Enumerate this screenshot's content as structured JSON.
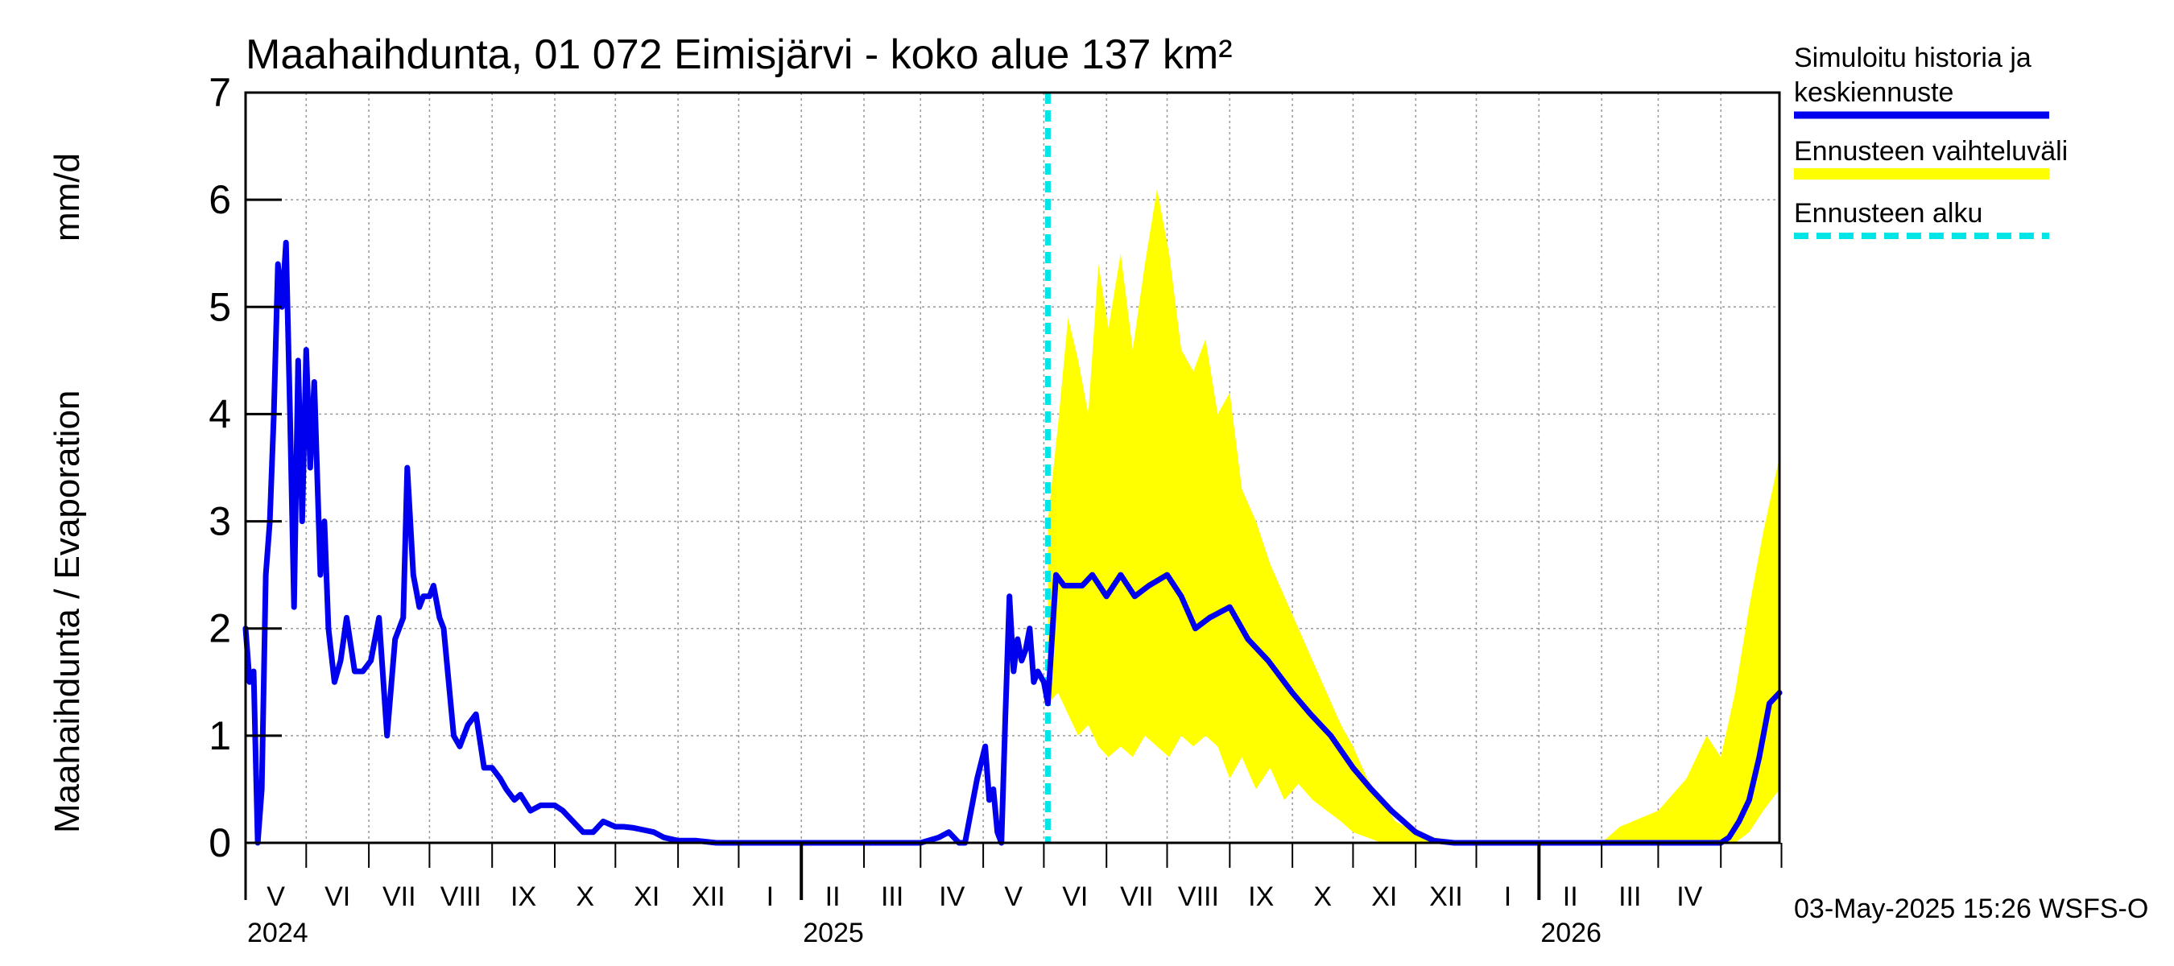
{
  "chart_data": {
    "type": "line",
    "title": "Maahaihdunta, 01 072 Eimisjärvi - koko alue 137 km²",
    "ylabel_left": "Maahaihdunta / Evaporation",
    "ylabel_unit": "mm/d",
    "ylim": [
      0,
      7
    ],
    "y_ticks": [
      "0",
      "1",
      "2",
      "3",
      "4",
      "5",
      "6",
      "7"
    ],
    "x_range": [
      "2024-04-01",
      "2026-04-30"
    ],
    "month_labels": [
      "V",
      "VI",
      "VII",
      "VIII",
      "IX",
      "X",
      "XI",
      "XII",
      "I",
      "II",
      "III",
      "IV",
      "V",
      "VI",
      "VII",
      "VIII",
      "IX",
      "X",
      "XI",
      "XII",
      "I",
      "II",
      "III",
      "IV"
    ],
    "month_starts": [
      "2024-04-01",
      "2024-05-01",
      "2024-06-01",
      "2024-07-01",
      "2024-08-01",
      "2024-09-01",
      "2024-10-01",
      "2024-11-01",
      "2024-12-01",
      "2025-01-01",
      "2025-02-01",
      "2025-03-01",
      "2025-04-01",
      "2025-05-01",
      "2025-06-01",
      "2025-07-01",
      "2025-08-01",
      "2025-09-01",
      "2025-10-01",
      "2025-11-01",
      "2025-12-01",
      "2026-01-01",
      "2026-02-01",
      "2026-03-01",
      "2026-04-01",
      "2026-05-01"
    ],
    "year_labels": [
      {
        "label": "2024",
        "date": "2024-04-01"
      },
      {
        "label": "2025",
        "date": "2025-01-01"
      },
      {
        "label": "2026",
        "date": "2026-01-01"
      }
    ],
    "forecast_start": "2025-05-03",
    "series": [
      {
        "name": "Simuloitu historia ja keskiennuste",
        "color": "#0000ee",
        "x": [
          "2024-04-01",
          "2024-04-03",
          "2024-04-05",
          "2024-04-07",
          "2024-04-09",
          "2024-04-11",
          "2024-04-13",
          "2024-04-15",
          "2024-04-17",
          "2024-04-19",
          "2024-04-21",
          "2024-04-23",
          "2024-04-25",
          "2024-04-27",
          "2024-04-29",
          "2024-05-01",
          "2024-05-03",
          "2024-05-05",
          "2024-05-08",
          "2024-05-10",
          "2024-05-12",
          "2024-05-15",
          "2024-05-18",
          "2024-05-21",
          "2024-05-25",
          "2024-05-29",
          "2024-06-02",
          "2024-06-06",
          "2024-06-10",
          "2024-06-14",
          "2024-06-18",
          "2024-06-20",
          "2024-06-23",
          "2024-06-26",
          "2024-06-28",
          "2024-07-01",
          "2024-07-03",
          "2024-07-06",
          "2024-07-08",
          "2024-07-10",
          "2024-07-13",
          "2024-07-16",
          "2024-07-20",
          "2024-07-24",
          "2024-07-28",
          "2024-08-01",
          "2024-08-05",
          "2024-08-08",
          "2024-08-12",
          "2024-08-15",
          "2024-08-20",
          "2024-08-25",
          "2024-09-01",
          "2024-09-05",
          "2024-09-10",
          "2024-09-15",
          "2024-09-20",
          "2024-09-25",
          "2024-10-01",
          "2024-10-05",
          "2024-10-10",
          "2024-10-15",
          "2024-10-20",
          "2024-10-25",
          "2024-11-01",
          "2024-11-10",
          "2024-11-20",
          "2024-12-01",
          "2024-12-15",
          "2025-01-01",
          "2025-01-20",
          "2025-02-01",
          "2025-02-20",
          "2025-03-01",
          "2025-03-10",
          "2025-03-15",
          "2025-03-20",
          "2025-03-23",
          "2025-03-26",
          "2025-03-29",
          "2025-04-02",
          "2025-04-04",
          "2025-04-06",
          "2025-04-08",
          "2025-04-10",
          "2025-04-12",
          "2025-04-14",
          "2025-04-16",
          "2025-04-18",
          "2025-04-20",
          "2025-04-22",
          "2025-04-24",
          "2025-04-26",
          "2025-04-28",
          "2025-05-01",
          "2025-05-03",
          "2025-05-07",
          "2025-05-11",
          "2025-05-15",
          "2025-05-20",
          "2025-05-25",
          "2025-06-01",
          "2025-06-08",
          "2025-06-15",
          "2025-06-22",
          "2025-07-01",
          "2025-07-08",
          "2025-07-15",
          "2025-07-22",
          "2025-08-01",
          "2025-08-10",
          "2025-08-20",
          "2025-09-01",
          "2025-09-10",
          "2025-09-20",
          "2025-10-01",
          "2025-10-10",
          "2025-10-20",
          "2025-11-01",
          "2025-11-10",
          "2025-11-20",
          "2025-12-01",
          "2026-01-01",
          "2026-02-01",
          "2026-03-01",
          "2026-03-20",
          "2026-04-01",
          "2026-04-05",
          "2026-04-10",
          "2026-04-15",
          "2026-04-20",
          "2026-04-25",
          "2026-04-30"
        ],
        "y": [
          2.0,
          1.5,
          1.6,
          0.0,
          0.5,
          2.5,
          3.0,
          4.0,
          5.4,
          5.0,
          5.6,
          4.0,
          2.2,
          4.5,
          3.0,
          4.6,
          3.5,
          4.3,
          2.5,
          3.0,
          2.0,
          1.5,
          1.7,
          2.1,
          1.6,
          1.6,
          1.7,
          2.1,
          1.0,
          1.9,
          2.1,
          3.5,
          2.5,
          2.2,
          2.3,
          2.3,
          2.4,
          2.1,
          2.0,
          1.6,
          1.0,
          0.9,
          1.1,
          1.2,
          0.7,
          0.7,
          0.6,
          0.5,
          0.4,
          0.45,
          0.3,
          0.35,
          0.35,
          0.3,
          0.2,
          0.1,
          0.1,
          0.2,
          0.15,
          0.15,
          0.14,
          0.12,
          0.1,
          0.05,
          0.02,
          0.02,
          0.0,
          0.0,
          0.0,
          0.0,
          0.0,
          0.0,
          0.0,
          0.0,
          0.05,
          0.1,
          0.0,
          0.0,
          0.3,
          0.6,
          0.9,
          0.4,
          0.5,
          0.1,
          0.0,
          1.2,
          2.3,
          1.6,
          1.9,
          1.7,
          1.8,
          2.0,
          1.5,
          1.6,
          1.5,
          1.3,
          2.5,
          2.4,
          2.4,
          2.4,
          2.5,
          2.3,
          2.5,
          2.3,
          2.4,
          2.5,
          2.3,
          2.0,
          2.1,
          2.2,
          1.9,
          1.7,
          1.4,
          1.2,
          1.0,
          0.7,
          0.5,
          0.3,
          0.1,
          0.02,
          0.0,
          0.0,
          0.0,
          0.0,
          0.0,
          0.0,
          0.0,
          0.05,
          0.2,
          0.4,
          0.8,
          1.3,
          1.4
        ]
      },
      {
        "name": "Ennusteen vaihteluväli",
        "color": "#ffff00",
        "x": [
          "2025-05-03",
          "2025-05-08",
          "2025-05-13",
          "2025-05-18",
          "2025-05-23",
          "2025-05-28",
          "2025-06-02",
          "2025-06-08",
          "2025-06-14",
          "2025-06-20",
          "2025-06-26",
          "2025-07-02",
          "2025-07-08",
          "2025-07-14",
          "2025-07-20",
          "2025-07-26",
          "2025-08-01",
          "2025-08-07",
          "2025-08-14",
          "2025-08-21",
          "2025-08-28",
          "2025-09-04",
          "2025-09-11",
          "2025-09-18",
          "2025-09-25",
          "2025-10-01",
          "2025-10-08",
          "2025-10-15",
          "2025-10-22",
          "2025-11-01",
          "2025-11-10",
          "2025-11-20",
          "2025-12-01",
          "2026-01-01",
          "2026-02-01",
          "2026-02-10",
          "2026-03-01",
          "2026-03-15",
          "2026-03-25",
          "2026-04-01",
          "2026-04-08",
          "2026-04-15",
          "2026-04-22",
          "2026-04-30"
        ],
        "low": [
          1.3,
          1.4,
          1.2,
          1.0,
          1.1,
          0.9,
          0.8,
          0.9,
          0.8,
          1.0,
          0.9,
          0.8,
          1.0,
          0.9,
          1.0,
          0.9,
          0.6,
          0.8,
          0.5,
          0.7,
          0.4,
          0.55,
          0.4,
          0.3,
          0.2,
          0.1,
          0.05,
          0.0,
          0.0,
          0.0,
          0.0,
          0.0,
          0.0,
          0.0,
          0.0,
          0.0,
          0.0,
          0.0,
          0.0,
          0.0,
          0.0,
          0.1,
          0.3,
          0.5
        ],
        "high": [
          3.0,
          3.9,
          4.9,
          4.5,
          4.0,
          5.4,
          4.8,
          5.5,
          4.6,
          5.4,
          6.1,
          5.5,
          4.6,
          4.4,
          4.7,
          4.0,
          4.2,
          3.3,
          3.0,
          2.6,
          2.3,
          2.0,
          1.7,
          1.4,
          1.1,
          0.9,
          0.6,
          0.4,
          0.2,
          0.1,
          0.05,
          0.02,
          0.0,
          0.0,
          0.0,
          0.15,
          0.3,
          0.6,
          1.0,
          0.8,
          1.4,
          2.2,
          2.9,
          3.6
        ]
      },
      {
        "name": "Ennusteen alku",
        "color": "#00e5e5"
      }
    ],
    "legend": [
      {
        "label": "Simuloitu historia ja keskiennuste",
        "color": "#0000ee"
      },
      {
        "label": "Ennusteen vaihteluväli",
        "color": "#ffff00"
      },
      {
        "label": "Ennusteen alku",
        "color": "#00e5e5"
      }
    ],
    "legend_lines": [
      "Simuloitu historia ja",
      "keskiennuste"
    ],
    "timestamp": "03-May-2025 15:26 WSFS-O",
    "grid": true,
    "legend_position": "right"
  }
}
